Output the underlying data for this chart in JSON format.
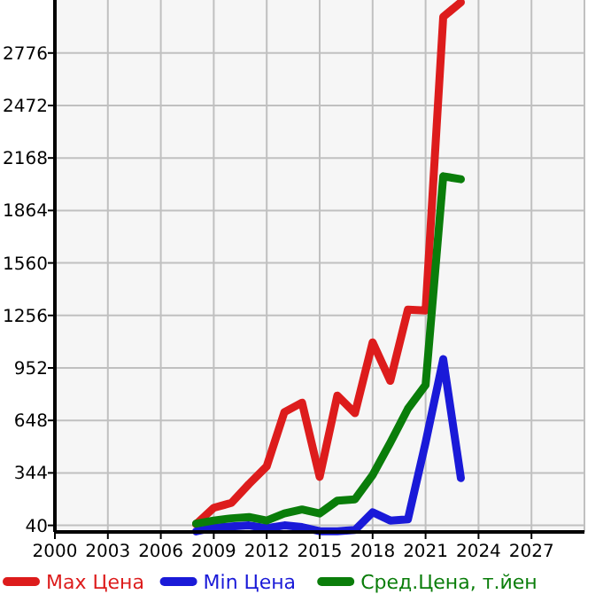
{
  "chart_data": {
    "type": "line",
    "x": [
      2008,
      2009,
      2010,
      2011,
      2012,
      2013,
      2014,
      2015,
      2016,
      2017,
      2018,
      2019,
      2020,
      2021,
      2022,
      2023
    ],
    "xlim": [
      2000,
      2030
    ],
    "xticks": [
      2000,
      2003,
      2006,
      2009,
      2012,
      2015,
      2018,
      2021,
      2024,
      2027
    ],
    "ylim": [
      2,
      3083
    ],
    "yticks": [
      40,
      344,
      648,
      952,
      1256,
      1560,
      1864,
      2168,
      2472,
      2776
    ],
    "grid": true,
    "legend": "bottom",
    "marker": "none",
    "line_style": "solid",
    "series": [
      {
        "name": "Max Цена",
        "color": "#dd1c1c",
        "values": [
          47,
          142,
          170,
          280,
          382,
          696,
          751,
          321,
          792,
          690,
          1100,
          877,
          1290,
          1284,
          2985,
          3070
        ]
      },
      {
        "name": "Min Цена",
        "color": "#1a1ad8",
        "values": [
          5,
          27,
          34,
          40,
          24,
          40,
          30,
          6,
          6,
          13,
          116,
          68,
          75,
          519,
          1003,
          314
        ]
      },
      {
        "name": "Сред.Цена, т.йен",
        "color": "#0a7d0a",
        "values": [
          50,
          68,
          81,
          88,
          68,
          109,
          132,
          109,
          183,
          191,
          331,
          519,
          716,
          853,
          2062,
          2045
        ]
      }
    ]
  }
}
